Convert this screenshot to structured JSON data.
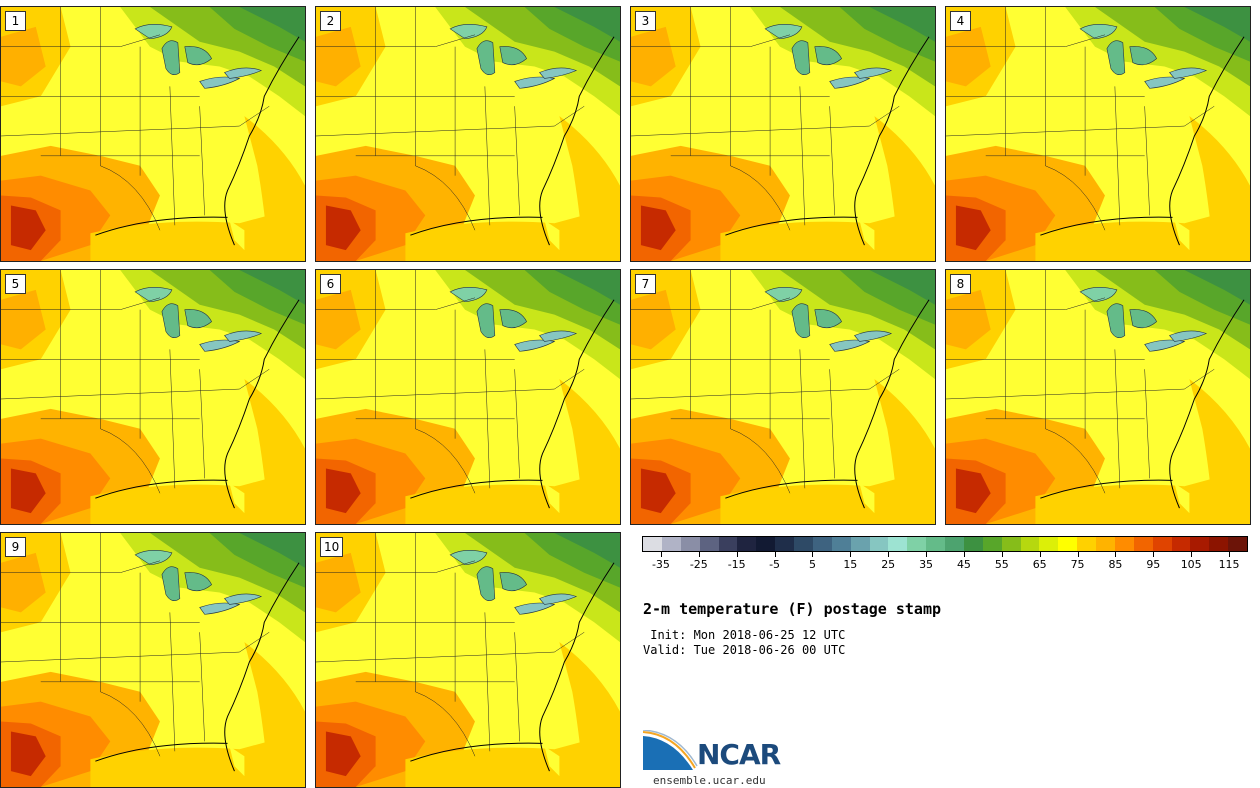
{
  "figure": {
    "title": "2-m temperature (F) postage stamp",
    "init": " Init: Mon 2018-06-25 12 UTC",
    "valid": "Valid: Tue 2018-06-26 00 UTC",
    "site": "ensemble.ucar.edu",
    "logo_text": "NCAR"
  },
  "members": [
    "1",
    "2",
    "3",
    "4",
    "5",
    "6",
    "7",
    "8",
    "9",
    "10"
  ],
  "colorbar": {
    "colors": [
      "#dcdde3",
      "#b0b3c6",
      "#8a8ea6",
      "#5d6381",
      "#3a3f5e",
      "#1f2440",
      "#121a33",
      "#1f2e4a",
      "#2e4a66",
      "#3e6380",
      "#4f7f97",
      "#6aa2ad",
      "#86c6c1",
      "#9de3d2",
      "#7fd1a6",
      "#64bb89",
      "#4da36f",
      "#3d9141",
      "#58a62a",
      "#86bd1a",
      "#b6d80f",
      "#dcef08",
      "#ffff00",
      "#ffd100",
      "#ffb300",
      "#ff8c00",
      "#f26500",
      "#e04400",
      "#c62a00",
      "#a81a00",
      "#8c1400",
      "#6c1408"
    ],
    "tick_labels": [
      "-35",
      "-25",
      "-15",
      "-5",
      "5",
      "15",
      "25",
      "35",
      "45",
      "55",
      "65",
      "75",
      "85",
      "95",
      "105",
      "115"
    ]
  }
}
